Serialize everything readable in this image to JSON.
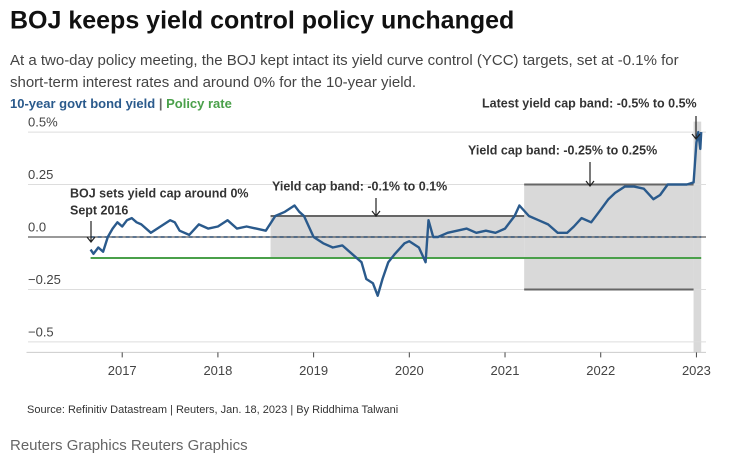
{
  "chart_data": {
    "type": "line",
    "title": "BOJ keeps yield control policy unchanged",
    "subtitle": [
      "At a two-day policy meeting, the BOJ kept intact its yield curve control (YCC) targets, set at -0.1% for",
      "short-term interest rates and around 0% for the 10-year yield."
    ],
    "legend_separator": "|",
    "xlim": [
      2016.0,
      2023.1
    ],
    "xticks": [
      2017,
      2018,
      2019,
      2020,
      2021,
      2022,
      2023
    ],
    "ylim": [
      -0.55,
      0.55
    ],
    "yticks": [
      {
        "value": 0.5,
        "label": "0.5%"
      },
      0.25,
      {
        "value": 0,
        "label": "0.0"
      },
      {
        "value": -0.25,
        "label": "−0.25"
      },
      {
        "value": -0.5,
        "label": "−0.5"
      }
    ],
    "grid": true,
    "bands": [
      {
        "x": [
          2018.55,
          2021.2
        ],
        "range": [
          -0.1,
          0.1
        ],
        "color": "#d9d9d9"
      },
      {
        "x": [
          2021.2,
          2022.97
        ],
        "range": [
          -0.25,
          0.25
        ],
        "color": "#d9d9d9"
      },
      {
        "x": [
          2022.97,
          2023.05
        ],
        "range": [
          -0.55,
          0.55
        ],
        "color": "#d9d9d9"
      }
    ],
    "target_line": {
      "x": [
        2016.67,
        2023.05
      ],
      "values": [
        0,
        0
      ],
      "color": "#2a4a6e"
    },
    "series": [
      {
        "name": "10-year govt bond yield",
        "color": "#2a5a8c",
        "x": [
          2016.67,
          2016.7,
          2016.75,
          2016.8,
          2016.85,
          2016.9,
          2016.95,
          2017.0,
          2017.05,
          2017.1,
          2017.15,
          2017.2,
          2017.3,
          2017.4,
          2017.5,
          2017.55,
          2017.6,
          2017.7,
          2017.8,
          2017.9,
          2018.0,
          2018.1,
          2018.2,
          2018.3,
          2018.4,
          2018.5,
          2018.6,
          2018.7,
          2018.8,
          2018.85,
          2018.9,
          2019.0,
          2019.1,
          2019.2,
          2019.3,
          2019.4,
          2019.5,
          2019.55,
          2019.62,
          2019.67,
          2019.72,
          2019.78,
          2019.85,
          2019.95,
          2020.0,
          2020.1,
          2020.17,
          2020.2,
          2020.25,
          2020.3,
          2020.4,
          2020.5,
          2020.6,
          2020.7,
          2020.8,
          2020.9,
          2021.0,
          2021.1,
          2021.15,
          2021.25,
          2021.35,
          2021.45,
          2021.55,
          2021.65,
          2021.72,
          2021.8,
          2021.9,
          2022.0,
          2022.08,
          2022.15,
          2022.25,
          2022.35,
          2022.45,
          2022.55,
          2022.62,
          2022.7,
          2022.8,
          2022.9,
          2022.97,
          2023.0,
          2023.02,
          2023.04,
          2023.05
        ],
        "values": [
          -0.06,
          -0.08,
          -0.05,
          -0.07,
          0.0,
          0.04,
          0.07,
          0.05,
          0.08,
          0.09,
          0.07,
          0.06,
          0.02,
          0.05,
          0.08,
          0.07,
          0.03,
          0.01,
          0.06,
          0.04,
          0.05,
          0.08,
          0.04,
          0.05,
          0.04,
          0.03,
          0.1,
          0.12,
          0.15,
          0.12,
          0.1,
          0.0,
          -0.03,
          -0.05,
          -0.04,
          -0.08,
          -0.12,
          -0.2,
          -0.22,
          -0.28,
          -0.2,
          -0.12,
          -0.08,
          -0.03,
          -0.02,
          -0.05,
          -0.12,
          0.08,
          0.0,
          0.0,
          0.02,
          0.03,
          0.04,
          0.02,
          0.03,
          0.02,
          0.04,
          0.1,
          0.15,
          0.1,
          0.08,
          0.06,
          0.02,
          0.02,
          0.05,
          0.09,
          0.07,
          0.13,
          0.18,
          0.21,
          0.24,
          0.24,
          0.23,
          0.18,
          0.2,
          0.25,
          0.25,
          0.25,
          0.26,
          0.45,
          0.5,
          0.42,
          0.5
        ]
      },
      {
        "name": "Policy rate",
        "color": "#4aa04a",
        "x": [
          2016.67,
          2023.05
        ],
        "values": [
          -0.1,
          -0.1
        ]
      }
    ],
    "annotations": [
      "BOJ sets yield cap around 0%",
      "Sept 2016",
      "Yield cap band: -0.1% to 0.1%",
      "Yield cap band: -0.25% to 0.25%",
      "Latest yield cap band: -0.5% to 0.5%"
    ],
    "source": "Source: Refinitiv Datastream | Reuters, Jan. 18, 2023 | By Riddhima Talwani",
    "credit": "Reuters Graphics Reuters Graphics"
  }
}
